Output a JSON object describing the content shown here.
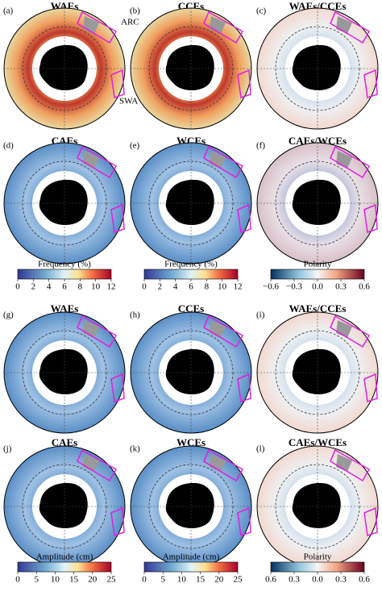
{
  "panels": [
    {
      "label": "(a)",
      "title": "WAEs"
    },
    {
      "label": "(b)",
      "title": "CCEs"
    },
    {
      "label": "(c)",
      "title": "WAEs/CCEs"
    },
    {
      "label": "(d)",
      "title": "CAEs"
    },
    {
      "label": "(e)",
      "title": "WCEs"
    },
    {
      "label": "(f)",
      "title": "CAEs/WCEs"
    },
    {
      "label": "(g)",
      "title": "WAEs"
    },
    {
      "label": "(h)",
      "title": "CCEs"
    },
    {
      "label": "(i)",
      "title": "WAEs/CCEs"
    },
    {
      "label": "(j)",
      "title": "CAEs"
    },
    {
      "label": "(k)",
      "title": "WCEs"
    },
    {
      "label": "(l)",
      "title": "CAEs/WCEs"
    }
  ],
  "annotations": {
    "arc": "ARC",
    "swa": "SWA"
  },
  "colorbars": [
    {
      "label": "Frequency (%)",
      "ticks": [
        "0",
        "2",
        "4",
        "6",
        "8",
        "10",
        "12"
      ]
    },
    {
      "label": "Frequency (%)",
      "ticks": [
        "0",
        "2",
        "4",
        "6",
        "8",
        "10",
        "12"
      ]
    },
    {
      "label": "Polarity",
      "ticks": [
        "−0.6",
        "−0.3",
        "0.0",
        "0.3",
        "0.6"
      ]
    },
    {
      "label": "Amplitude (cm)",
      "ticks": [
        "0",
        "5",
        "10",
        "15",
        "20",
        "25"
      ]
    },
    {
      "label": "Amplitude (cm)",
      "ticks": [
        "0",
        "5",
        "10",
        "15",
        "20",
        "25"
      ]
    },
    {
      "label": "Polarity",
      "ticks": [
        "0.6",
        "0.3",
        "0.0",
        "0.3",
        "0.6"
      ]
    }
  ]
}
